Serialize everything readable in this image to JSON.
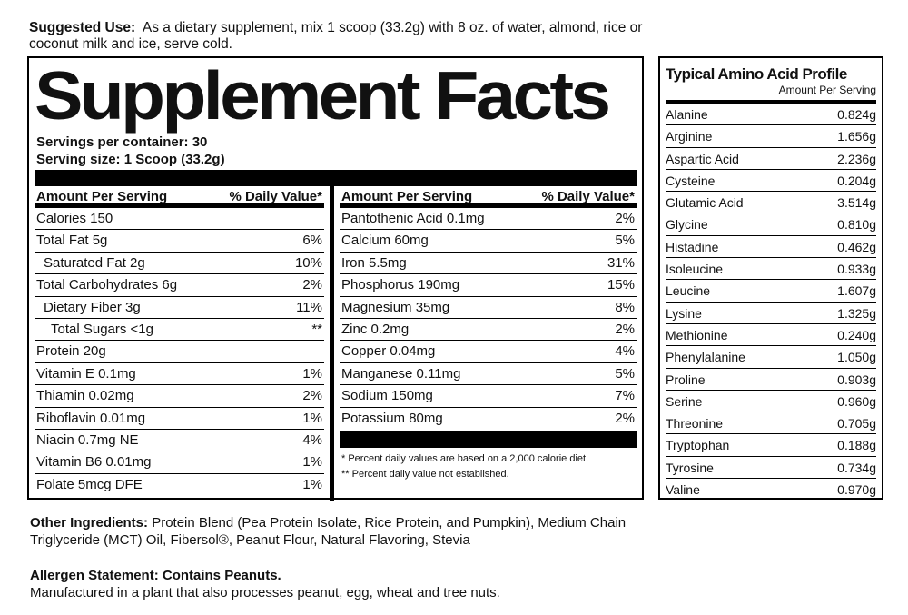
{
  "suggested_use": {
    "label": "Suggested Use:",
    "text": "As a dietary supplement, mix 1 scoop (33.2g) with 8 oz. of water, almond, rice or coconut milk and ice, serve cold."
  },
  "facts": {
    "title": "Supplement Facts",
    "servings_per_container": "Servings per container: 30",
    "serving_size": "Serving size: 1 Scoop (33.2g)",
    "header_amount": "Amount Per Serving",
    "header_dv": "% Daily Value*",
    "left_rows": [
      {
        "name": "Calories 150",
        "dv": "",
        "indent": 0
      },
      {
        "name": "Total Fat 5g",
        "dv": "6%",
        "indent": 0
      },
      {
        "name": "Saturated Fat 2g",
        "dv": "10%",
        "indent": 1
      },
      {
        "name": "Total Carbohydrates 6g",
        "dv": "2%",
        "indent": 0
      },
      {
        "name": "Dietary Fiber 3g",
        "dv": "11%",
        "indent": 1
      },
      {
        "name": "Total Sugars <1g",
        "dv": "**",
        "indent": 2
      },
      {
        "name": "Protein 20g",
        "dv": "",
        "indent": 0
      },
      {
        "name": "Vitamin E  0.1mg",
        "dv": "1%",
        "indent": 0
      },
      {
        "name": "Thiamin 0.02mg",
        "dv": "2%",
        "indent": 0
      },
      {
        "name": "Riboflavin 0.01mg",
        "dv": "1%",
        "indent": 0
      },
      {
        "name": "Niacin  0.7mg NE",
        "dv": "4%",
        "indent": 0
      },
      {
        "name": "Vitamin B6  0.01mg",
        "dv": "1%",
        "indent": 0
      },
      {
        "name": "Folate  5mcg DFE",
        "dv": "1%",
        "indent": 0
      }
    ],
    "right_rows": [
      {
        "name": "Pantothenic Acid 0.1mg",
        "dv": "2%"
      },
      {
        "name": "Calcium 60mg",
        "dv": "5%"
      },
      {
        "name": "Iron 5.5mg",
        "dv": "31%"
      },
      {
        "name": "Phosphorus  190mg",
        "dv": "15%"
      },
      {
        "name": "Magnesium  35mg",
        "dv": "8%"
      },
      {
        "name": "Zinc 0.2mg",
        "dv": "2%"
      },
      {
        "name": "Copper 0.04mg",
        "dv": "4%"
      },
      {
        "name": "Manganese  0.11mg",
        "dv": "5%"
      },
      {
        "name": "Sodium 150mg",
        "dv": "7%"
      },
      {
        "name": "Potassium 80mg",
        "dv": "2%"
      }
    ],
    "note_1": "* Percent daily values are based on a 2,000 calorie diet.",
    "note_2": "** Percent daily value not established."
  },
  "amino": {
    "title": "Typical Amino Acid Profile",
    "subtitle": "Amount Per Serving",
    "rows": [
      {
        "name": "Alanine",
        "amount": "0.824g"
      },
      {
        "name": "Arginine",
        "amount": "1.656g"
      },
      {
        "name": "Aspartic Acid",
        "amount": "2.236g"
      },
      {
        "name": "Cysteine",
        "amount": "0.204g"
      },
      {
        "name": "Glutamic Acid",
        "amount": "3.514g"
      },
      {
        "name": "Glycine",
        "amount": "0.810g"
      },
      {
        "name": "Histadine",
        "amount": "0.462g"
      },
      {
        "name": "Isoleucine",
        "amount": "0.933g"
      },
      {
        "name": "Leucine",
        "amount": "1.607g"
      },
      {
        "name": "Lysine",
        "amount": "1.325g"
      },
      {
        "name": "Methionine",
        "amount": "0.240g"
      },
      {
        "name": "Phenylalanine",
        "amount": "1.050g"
      },
      {
        "name": "Proline",
        "amount": "0.903g"
      },
      {
        "name": "Serine",
        "amount": "0.960g"
      },
      {
        "name": "Threonine",
        "amount": "0.705g"
      },
      {
        "name": "Tryptophan",
        "amount": "0.188g"
      },
      {
        "name": "Tyrosine",
        "amount": "0.734g"
      },
      {
        "name": "Valine",
        "amount": "0.970g"
      }
    ]
  },
  "other_ingredients": {
    "label": "Other Ingredients:",
    "text": "Protein Blend (Pea Protein Isolate, Rice Protein, and Pumpkin), Medium Chain Triglyceride (MCT) Oil, Fibersol®, Peanut Flour, Natural Flavoring, Stevia"
  },
  "allergen": {
    "label": "Allergen Statement: Contains Peanuts.",
    "text": "Manufactured in a plant that also processes peanut, egg, wheat and tree nuts."
  }
}
